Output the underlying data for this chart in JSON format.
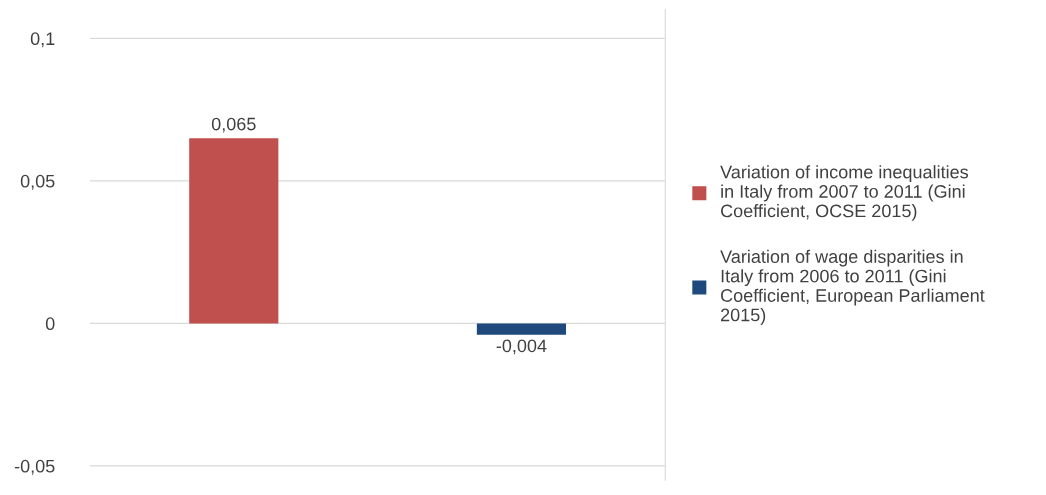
{
  "chart_data": {
    "type": "bar",
    "categories": [
      null,
      null
    ],
    "series": [
      {
        "name": "Variation of income inequalities in Italy from 2007 to 2011 (Gini Coefficient, OCSE 2015)",
        "color": "#c0504d",
        "values": [
          0.065,
          null
        ],
        "value_labels": [
          "0,065",
          null
        ]
      },
      {
        "name": "Variation of wage disparities in Italy from 2006 to 2011 (Gini Coefficient, European Parliament 2015)",
        "color": "#1f497d",
        "values": [
          null,
          -0.004
        ],
        "value_labels": [
          null,
          "-0,004"
        ]
      }
    ],
    "ylim": [
      -0.055,
      0.11
    ],
    "yticks": [
      {
        "value": -0.05,
        "label": "-0,05"
      },
      {
        "value": 0,
        "label": "0"
      },
      {
        "value": 0.05,
        "label": "0,05"
      },
      {
        "value": 0.1,
        "label": "0,1"
      }
    ],
    "grid": "y",
    "legend": "right"
  }
}
